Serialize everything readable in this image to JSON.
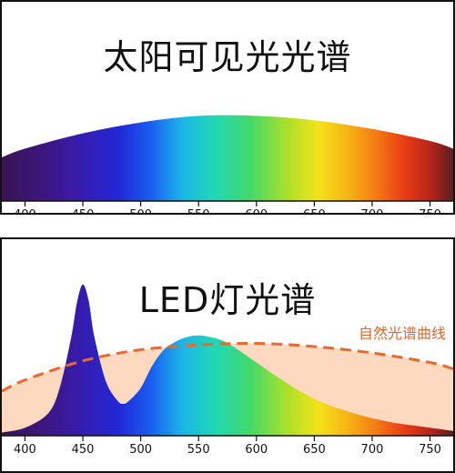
{
  "top_panel": {
    "title": "太阳可见光光谱"
  },
  "bottom_panel": {
    "title": "LED灯光谱",
    "curve_label": "自然光谱曲线"
  },
  "colors": {
    "natural_curve": "#e8692d",
    "natural_fill": "#fdd9bf",
    "border": "#111111"
  },
  "chart_data": [
    {
      "type": "area",
      "title": "太阳可见光光谱",
      "x": [
        380,
        400,
        450,
        500,
        550,
        600,
        650,
        700,
        750,
        770
      ],
      "values": [
        0.4,
        0.48,
        0.62,
        0.72,
        0.78,
        0.78,
        0.74,
        0.66,
        0.55,
        0.48
      ],
      "xlim": [
        380,
        770
      ],
      "x_ticks": [
        400,
        450,
        500,
        550,
        600,
        650,
        700,
        750
      ],
      "ylabel": "",
      "xlabel": ""
    },
    {
      "type": "area",
      "title": "LED灯光谱",
      "xlim": [
        380,
        770
      ],
      "x_ticks": [
        400,
        450,
        500,
        550,
        600,
        650,
        700,
        750
      ],
      "series": [
        {
          "x": [
            380,
            400,
            420,
            430,
            440,
            445,
            450,
            455,
            460,
            470,
            480,
            485,
            490,
            500,
            510,
            520,
            530,
            540,
            550,
            560,
            570,
            580,
            600,
            620,
            640,
            660,
            680,
            700,
            720,
            740,
            760,
            770
          ],
          "values": [
            0.02,
            0.05,
            0.14,
            0.3,
            0.62,
            0.84,
            0.95,
            0.85,
            0.62,
            0.34,
            0.22,
            0.2,
            0.22,
            0.3,
            0.44,
            0.54,
            0.59,
            0.62,
            0.63,
            0.62,
            0.6,
            0.56,
            0.46,
            0.36,
            0.27,
            0.2,
            0.15,
            0.11,
            0.08,
            0.06,
            0.04,
            0.03
          ]
        },
        {
          "name": "自然光谱曲线",
          "x": [
            380,
            400,
            450,
            500,
            550,
            600,
            650,
            700,
            750,
            770
          ],
          "values": [
            0.28,
            0.35,
            0.47,
            0.54,
            0.57,
            0.58,
            0.56,
            0.52,
            0.46,
            0.42
          ]
        }
      ]
    }
  ]
}
